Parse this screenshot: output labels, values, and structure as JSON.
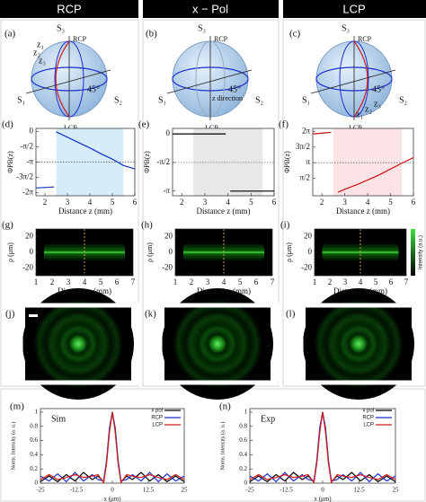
{
  "headers": [
    "RCP",
    "x − Pol",
    "LCP"
  ],
  "spheres": [
    {
      "label": "(a)",
      "texts": [
        "S₃",
        "RCP",
        "S₁",
        "S₂",
        "LCP",
        "45°",
        "z₁",
        "z₂",
        "z₃"
      ]
    },
    {
      "label": "(b)",
      "texts": [
        "S₃",
        "RCP",
        "S₁",
        "S₂",
        "LCP",
        "45°",
        "z direction"
      ]
    },
    {
      "label": "(c)",
      "texts": [
        "S₃",
        "RCP",
        "S₁",
        "S₂",
        "LCP",
        "45°",
        "z₁",
        "z₂",
        "z₃"
      ]
    }
  ],
  "beams": [
    "(j)",
    "(k)",
    "(l)"
  ],
  "chart_data": [
    {
      "type": "line",
      "label": "(d)",
      "xlabel": "Distance z (mm)",
      "ylabel": "ΦPB(z)",
      "xlim": [
        1.6,
        6
      ],
      "xticks": [
        2,
        3,
        4,
        5,
        6
      ],
      "ylim": [
        -6.6,
        0.3
      ],
      "yticks": [
        0,
        {
          "value": -1.5708,
          "label": "-π/2"
        },
        {
          "value": -3.1416,
          "label": "-π"
        },
        {
          "value": -4.7124,
          "label": "-3π/2"
        },
        {
          "value": -6.2832,
          "label": "-2π"
        }
      ],
      "hline": -3.1416,
      "shade": [
        2.5,
        5.5
      ],
      "shade_color": "#d6ecfa",
      "color": "#1030c0",
      "series": [
        {
          "x": [
            1.6,
            2.4
          ],
          "values": [
            -5.8,
            -5.7
          ]
        },
        {
          "x": [
            2.5,
            3,
            3.5,
            4,
            4.5,
            5,
            5.5,
            6
          ],
          "values": [
            -0.05,
            -0.6,
            -1.15,
            -1.7,
            -2.3,
            -2.85,
            -3.5,
            -3.85
          ]
        }
      ]
    },
    {
      "type": "line",
      "label": "(e)",
      "xlabel": "Distance z (mm)",
      "ylabel": "ΦPB(z)",
      "xlim": [
        1.6,
        6
      ],
      "xticks": [
        2,
        3,
        4,
        5,
        6
      ],
      "ylim": [
        -3.4,
        0.3
      ],
      "yticks": [
        0,
        {
          "value": -1.5708,
          "label": "-π/2"
        },
        {
          "value": -3.1416,
          "label": "-π"
        }
      ],
      "hline": -1.5708,
      "shade": [
        2.5,
        5.5
      ],
      "shade_color": "#e8e8e8",
      "color": "#000000",
      "series": [
        {
          "x": [
            1.6,
            3.9
          ],
          "values": [
            0,
            0
          ]
        },
        {
          "x": [
            4.1,
            6
          ],
          "values": [
            -3.1416,
            -3.1416
          ]
        }
      ]
    },
    {
      "type": "line",
      "label": "(f)",
      "xlabel": "Distance z (mm)",
      "ylabel": "ΦPB(z)",
      "xlim": [
        1.6,
        6
      ],
      "xticks": [
        2,
        3,
        4,
        5,
        6
      ],
      "ylim": [
        -0.2,
        6.6
      ],
      "yticks": [
        {
          "value": 6.2832,
          "label": "2π"
        },
        {
          "value": 4.7124,
          "label": "3π/2"
        },
        {
          "value": 3.1416,
          "label": "π"
        },
        {
          "value": 1.5708,
          "label": "π/2"
        }
      ],
      "hline": 3.1416,
      "shade": [
        2.5,
        5.5
      ],
      "shade_color": "#fbe3e6",
      "color": "#cc1111",
      "series": [
        {
          "x": [
            1.6,
            2.4
          ],
          "values": [
            6.05,
            6.2
          ]
        },
        {
          "x": [
            2.7,
            3,
            3.5,
            4,
            4.5,
            5,
            5.5,
            6
          ],
          "values": [
            0.15,
            0.45,
            0.9,
            1.4,
            1.9,
            2.5,
            3.1,
            3.65
          ]
        }
      ]
    },
    {
      "type": "image",
      "label": "(g)",
      "xlabel": "Distance z (mm)",
      "ylabel": "ρ (μm)",
      "xlim": [
        1,
        7
      ],
      "xticks": [
        1,
        2,
        3,
        4,
        5,
        6,
        7
      ],
      "ylim": [
        -30,
        30
      ],
      "yticks": [
        20,
        0,
        -20
      ],
      "band": [
        1.5,
        6.5
      ],
      "dashed_x": 4
    },
    {
      "type": "image",
      "label": "(h)",
      "xlabel": "Distance z (mm)",
      "ylabel": "ρ (μm)",
      "xlim": [
        1,
        7
      ],
      "xticks": [
        1,
        2,
        3,
        4,
        5,
        6,
        7
      ],
      "ylim": [
        -30,
        30
      ],
      "yticks": [
        20,
        0,
        -20
      ],
      "band": [
        1.5,
        6.5
      ],
      "dashed_x": 4
    },
    {
      "type": "image",
      "label": "(i)",
      "xlabel": "Distance z (mm)",
      "ylabel": "ρ (μm)",
      "xlim": [
        1,
        7
      ],
      "xticks": [
        1,
        2,
        3,
        4,
        5,
        6,
        7
      ],
      "ylim": [
        -30,
        30
      ],
      "yticks": [
        20,
        0,
        -20
      ],
      "band": [
        1.5,
        6.5
      ],
      "dashed_x": 4,
      "colorbar_label": "Intensity (a.u.)"
    },
    {
      "type": "profile",
      "label": "(m)",
      "annotation": "Sim",
      "xlabel": "x (μm)",
      "ylabel": "Norm. Intensity (a. u.)",
      "xlim": [
        -25,
        25
      ],
      "xticks": [
        -25,
        -12.5,
        0,
        12.5,
        25
      ],
      "ylim": [
        0,
        1.05
      ],
      "yticks": [
        0,
        0.2,
        0.4,
        0.6,
        0.8,
        1
      ],
      "x": [
        -25,
        -22,
        -19,
        -16,
        -13,
        -10,
        -7,
        -5,
        -3,
        -2,
        -1,
        0,
        1,
        2,
        3,
        5,
        7,
        10,
        13,
        16,
        19,
        22,
        25
      ],
      "series": [
        {
          "name": "x pol",
          "color": "#000000",
          "values": [
            0.02,
            0.1,
            0.02,
            0.12,
            0.03,
            0.15,
            0.05,
            0.1,
            0.02,
            0.3,
            0.75,
            1,
            0.75,
            0.3,
            0.02,
            0.1,
            0.05,
            0.15,
            0.03,
            0.12,
            0.02,
            0.1,
            0.02
          ]
        },
        {
          "name": "RCP",
          "color": "#1a2fd0",
          "values": [
            0.1,
            0.03,
            0.13,
            0.02,
            0.15,
            0.03,
            0.12,
            0.05,
            0.03,
            0.32,
            0.78,
            1,
            0.78,
            0.32,
            0.03,
            0.05,
            0.12,
            0.03,
            0.15,
            0.02,
            0.13,
            0.03,
            0.1
          ]
        },
        {
          "name": "LCP",
          "color": "#d01a1a",
          "values": [
            0.05,
            0.12,
            0.05,
            0.08,
            0.12,
            0.08,
            0.1,
            0.12,
            0.01,
            0.28,
            0.72,
            1,
            0.72,
            0.28,
            0.01,
            0.12,
            0.1,
            0.08,
            0.12,
            0.08,
            0.05,
            0.12,
            0.05
          ]
        }
      ]
    },
    {
      "type": "profile",
      "label": "(n)",
      "annotation": "Exp",
      "xlabel": "x (μm)",
      "ylabel": "Norm. Intensity (a. u.)",
      "xlim": [
        -25,
        25
      ],
      "xticks": [
        -25,
        -12.5,
        0,
        12.5,
        25
      ],
      "ylim": [
        0,
        1.05
      ],
      "yticks": [
        0,
        0.2,
        0.4,
        0.6,
        0.8,
        1
      ],
      "x": [
        -25,
        -22,
        -19,
        -16,
        -13,
        -10,
        -7,
        -5,
        -3,
        -2,
        -1,
        0,
        1,
        2,
        3,
        5,
        7,
        10,
        13,
        16,
        19,
        22,
        25
      ],
      "series": [
        {
          "name": "x pol",
          "color": "#000000",
          "values": [
            0.02,
            0.1,
            0.02,
            0.12,
            0.03,
            0.15,
            0.05,
            0.1,
            0.02,
            0.3,
            0.75,
            1,
            0.75,
            0.3,
            0.02,
            0.1,
            0.05,
            0.15,
            0.03,
            0.12,
            0.02,
            0.1,
            0.02
          ]
        },
        {
          "name": "RCP",
          "color": "#1a2fd0",
          "values": [
            0.1,
            0.03,
            0.13,
            0.02,
            0.15,
            0.03,
            0.12,
            0.05,
            0.03,
            0.32,
            0.78,
            1,
            0.78,
            0.32,
            0.03,
            0.05,
            0.12,
            0.03,
            0.15,
            0.02,
            0.13,
            0.03,
            0.1
          ]
        },
        {
          "name": "LCP",
          "color": "#d01a1a",
          "values": [
            0.05,
            0.12,
            0.05,
            0.08,
            0.12,
            0.08,
            0.1,
            0.12,
            0.01,
            0.28,
            0.72,
            1,
            0.72,
            0.28,
            0.01,
            0.12,
            0.1,
            0.08,
            0.12,
            0.08,
            0.05,
            0.12,
            0.05
          ]
        }
      ]
    }
  ]
}
